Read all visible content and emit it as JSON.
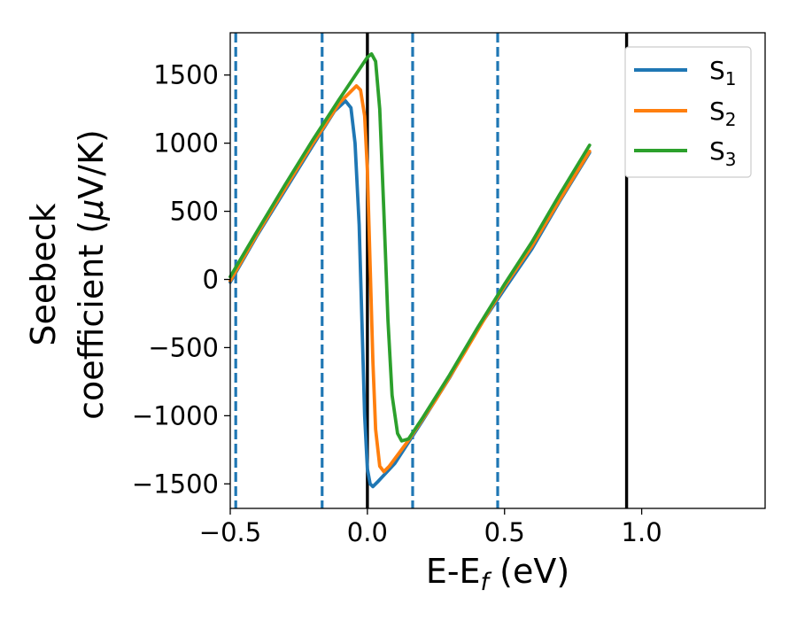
{
  "chart_data": {
    "type": "line",
    "title": "",
    "xlabel": "E-E",
    "xlabel_subscript": "f",
    "xlabel_suffix": " (eV)",
    "ylabel_line1": "Seebeck",
    "ylabel_line2": "coefficient  (",
    "ylabel_mu": "μ",
    "ylabel_line2_end": "V/K)",
    "xlim": [
      -0.5,
      1.45
    ],
    "ylim": [
      -1680,
      1810
    ],
    "xticks": [
      -0.5,
      0.0,
      0.5,
      1.0
    ],
    "xtick_labels": [
      "−0.5",
      "0.0",
      "0.5",
      "1.0"
    ],
    "yticks": [
      -1500,
      -1000,
      -500,
      0,
      500,
      1000,
      1500
    ],
    "ytick_labels": [
      "−1500",
      "−1000",
      "−500",
      "0",
      "500",
      "1000",
      "1500"
    ],
    "grid": false,
    "legend_position": "top-right",
    "vertical_lines": [
      {
        "x": -0.48,
        "style": "dashed",
        "color": "#1f77b4"
      },
      {
        "x": -0.165,
        "style": "dashed",
        "color": "#1f77b4"
      },
      {
        "x": 0.0,
        "style": "solid",
        "color": "#000000"
      },
      {
        "x": 0.165,
        "style": "dashed",
        "color": "#1f77b4"
      },
      {
        "x": 0.475,
        "style": "dashed",
        "color": "#1f77b4"
      },
      {
        "x": 0.945,
        "style": "solid",
        "color": "#000000"
      }
    ],
    "series": [
      {
        "name": "S",
        "subscript": "1",
        "color": "#1f77b4",
        "points": [
          [
            -0.5,
            -20
          ],
          [
            -0.4,
            330
          ],
          [
            -0.3,
            655
          ],
          [
            -0.2,
            980
          ],
          [
            -0.12,
            1235
          ],
          [
            -0.08,
            1310
          ],
          [
            -0.06,
            1260
          ],
          [
            -0.045,
            1000
          ],
          [
            -0.03,
            400
          ],
          [
            -0.02,
            -300
          ],
          [
            -0.01,
            -1000
          ],
          [
            0.0,
            -1390
          ],
          [
            0.01,
            -1500
          ],
          [
            0.02,
            -1520
          ],
          [
            0.04,
            -1480
          ],
          [
            0.1,
            -1350
          ],
          [
            0.2,
            -1040
          ],
          [
            0.3,
            -720
          ],
          [
            0.4,
            -370
          ],
          [
            0.5,
            -70
          ],
          [
            0.6,
            225
          ],
          [
            0.7,
            570
          ],
          [
            0.81,
            930
          ]
        ]
      },
      {
        "name": "S",
        "subscript": "2",
        "color": "#ff7f0e",
        "points": [
          [
            -0.5,
            -10
          ],
          [
            -0.4,
            340
          ],
          [
            -0.3,
            670
          ],
          [
            -0.2,
            995
          ],
          [
            -0.1,
            1300
          ],
          [
            -0.04,
            1420
          ],
          [
            -0.025,
            1390
          ],
          [
            -0.01,
            1200
          ],
          [
            0.0,
            800
          ],
          [
            0.01,
            100
          ],
          [
            0.02,
            -600
          ],
          [
            0.03,
            -1100
          ],
          [
            0.045,
            -1370
          ],
          [
            0.06,
            -1410
          ],
          [
            0.08,
            -1370
          ],
          [
            0.15,
            -1180
          ],
          [
            0.25,
            -880
          ],
          [
            0.35,
            -550
          ],
          [
            0.45,
            -210
          ],
          [
            0.5,
            -50
          ],
          [
            0.6,
            245
          ],
          [
            0.7,
            580
          ],
          [
            0.81,
            940
          ]
        ]
      },
      {
        "name": "S",
        "subscript": "3",
        "color": "#2ca02c",
        "points": [
          [
            -0.5,
            20
          ],
          [
            -0.4,
            360
          ],
          [
            -0.3,
            695
          ],
          [
            -0.2,
            1020
          ],
          [
            -0.1,
            1330
          ],
          [
            0.0,
            1630
          ],
          [
            0.015,
            1655
          ],
          [
            0.03,
            1600
          ],
          [
            0.045,
            1250
          ],
          [
            0.06,
            500
          ],
          [
            0.075,
            -300
          ],
          [
            0.09,
            -850
          ],
          [
            0.11,
            -1130
          ],
          [
            0.125,
            -1185
          ],
          [
            0.15,
            -1170
          ],
          [
            0.2,
            -1020
          ],
          [
            0.3,
            -700
          ],
          [
            0.4,
            -360
          ],
          [
            0.5,
            -35
          ],
          [
            0.6,
            275
          ],
          [
            0.7,
            620
          ],
          [
            0.81,
            985
          ]
        ]
      }
    ]
  }
}
